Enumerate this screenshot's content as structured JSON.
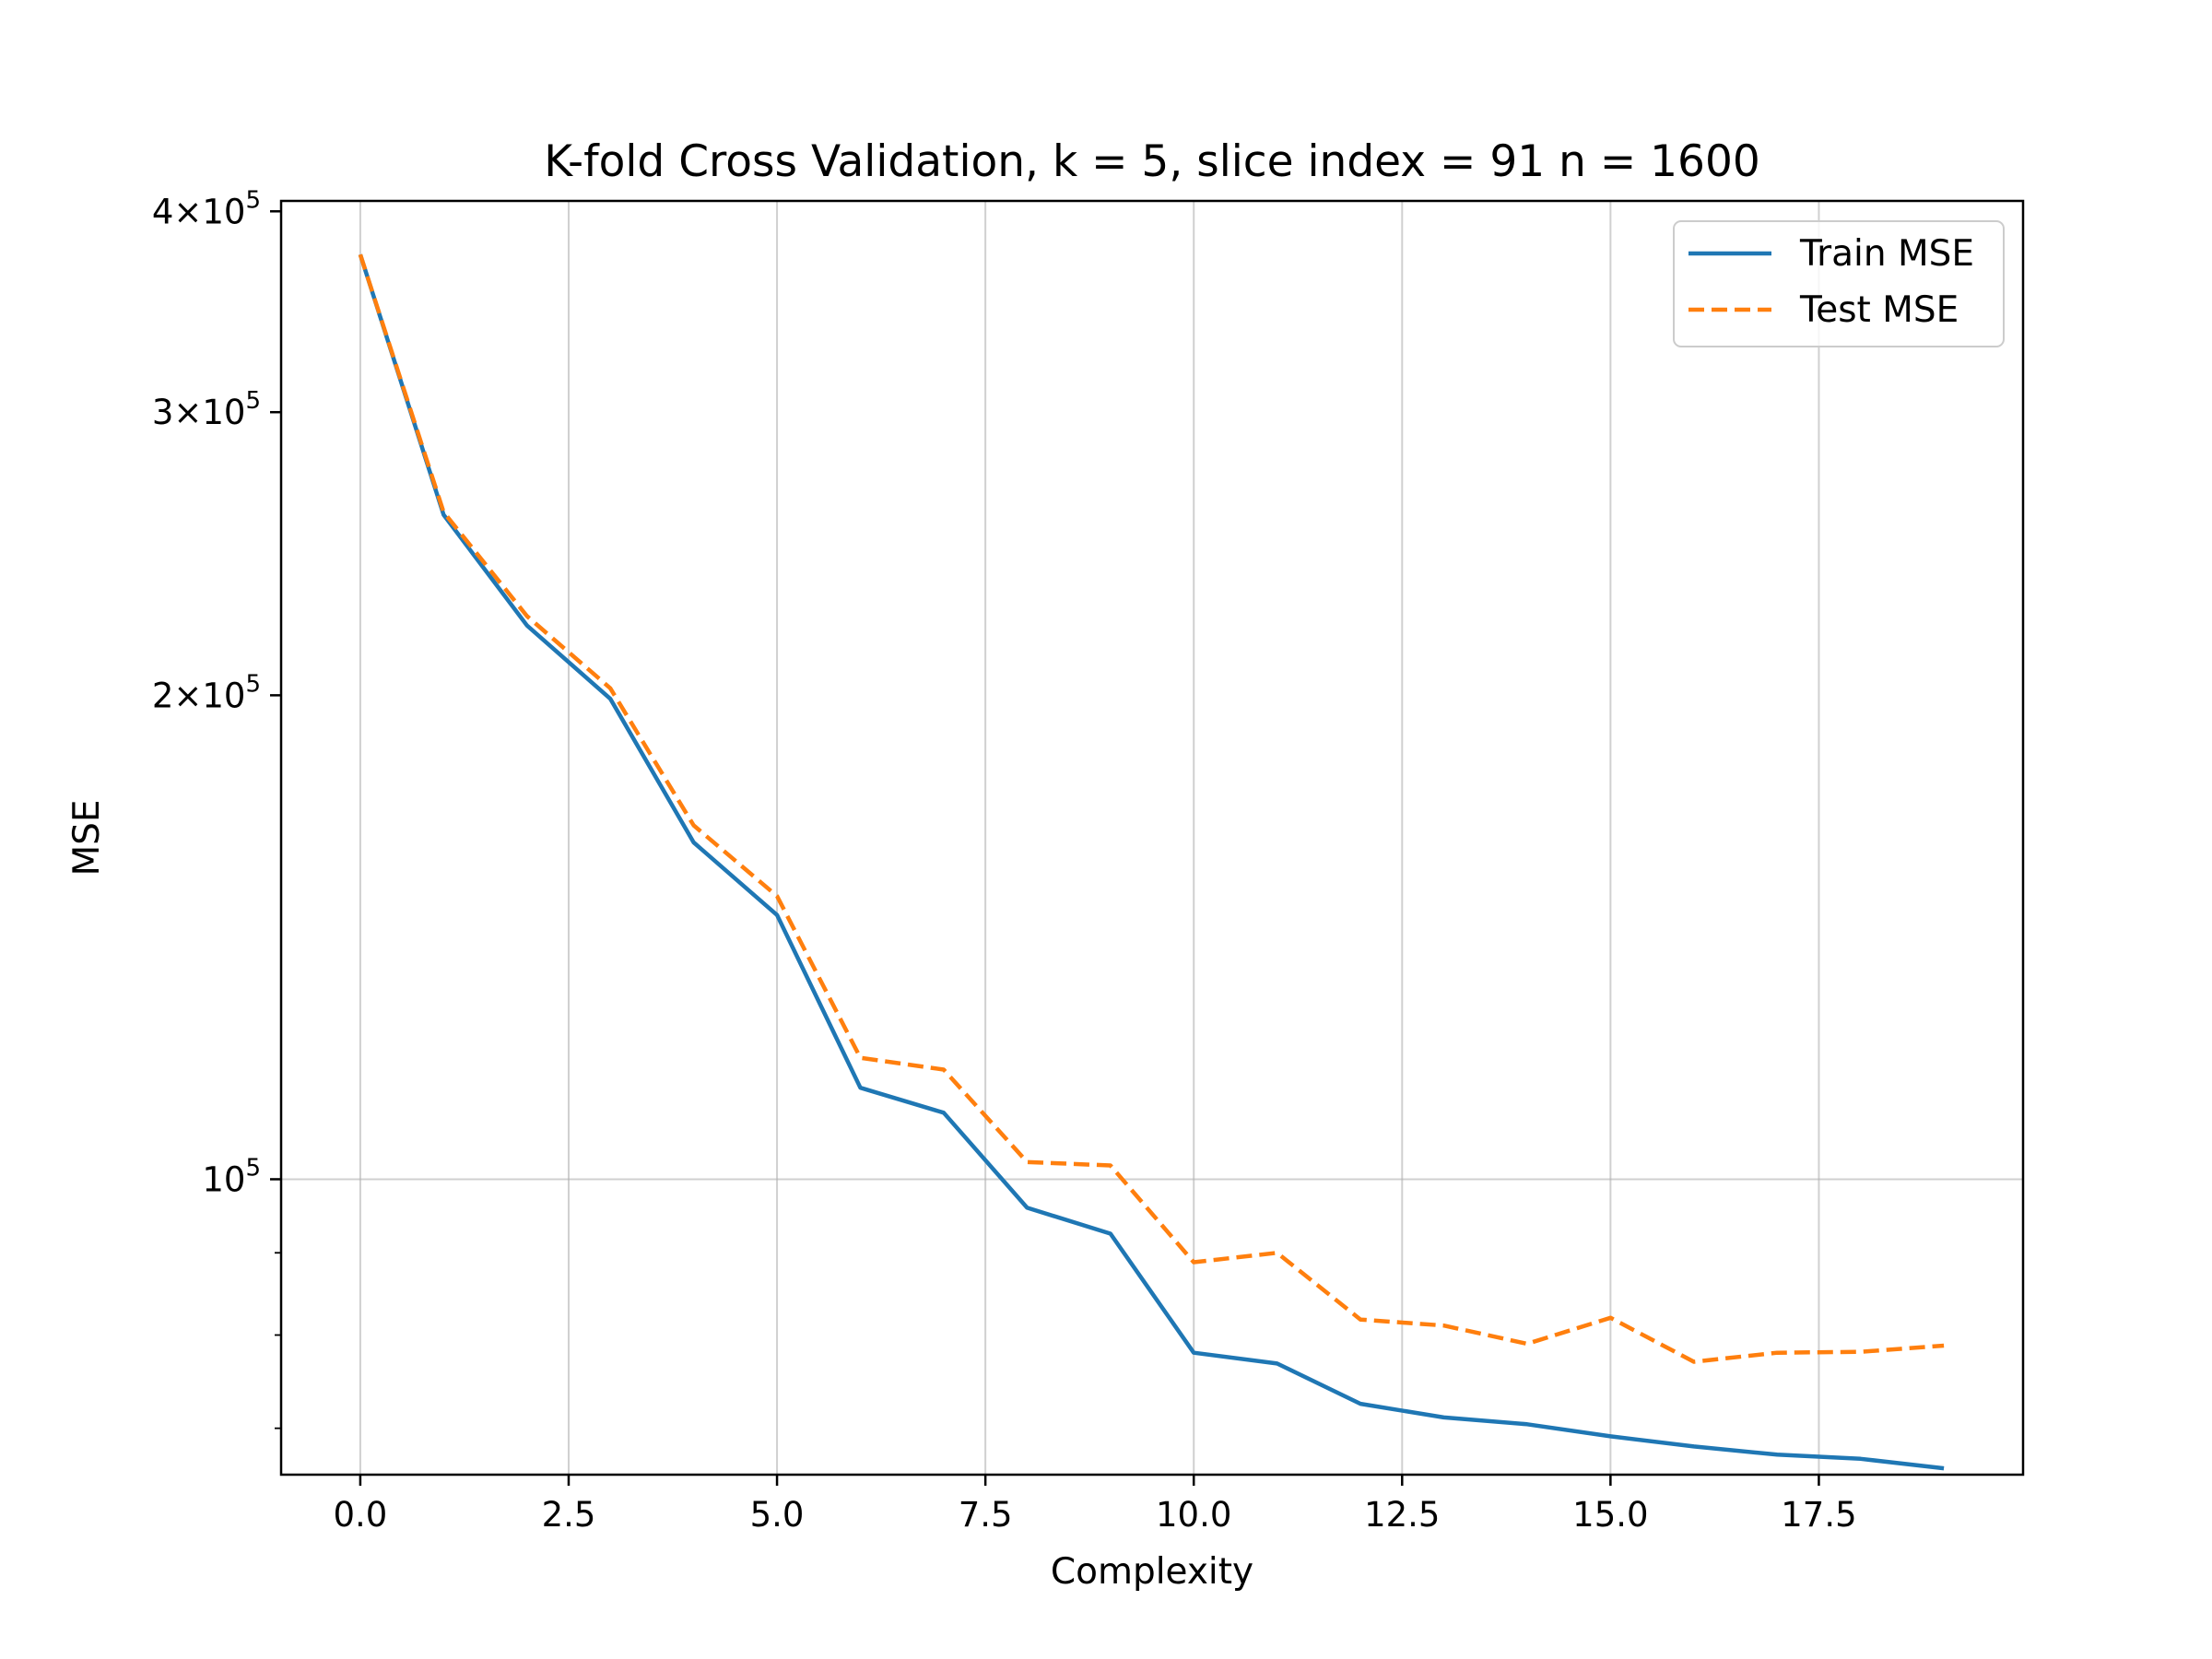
{
  "chart_data": {
    "type": "line",
    "title": "K-fold Cross Validation, k = 5, slice index = 91 n = 1600",
    "xlabel": "Complexity",
    "ylabel": "MSE",
    "y_scale": "log",
    "xlim": [
      -0.95,
      19.95
    ],
    "ylim": [
      65500,
      406000
    ],
    "grid": true,
    "legend_position": "upper right",
    "x_ticks": [
      "0.0",
      "2.5",
      "5.0",
      "7.5",
      "10.0",
      "12.5",
      "15.0",
      "17.5"
    ],
    "y_ticks": [
      {
        "base": "4",
        "exp": "5",
        "value": 400000
      },
      {
        "base": "3",
        "exp": "5",
        "value": 300000
      },
      {
        "base": "2",
        "exp": "5",
        "value": 200000
      },
      {
        "base": "",
        "exp": "5",
        "value": 100000
      }
    ],
    "x": [
      0,
      1,
      2,
      3,
      4,
      5,
      6,
      7,
      8,
      9,
      10,
      11,
      12,
      13,
      14,
      15,
      16,
      17,
      18,
      19
    ],
    "series": [
      {
        "name": "Train MSE",
        "color": "#1f77b4",
        "style": "solid",
        "values": [
          376000,
          259000,
          221000,
          199000,
          162000,
          146000,
          114000,
          110000,
          96000,
          92500,
          78000,
          76800,
          72500,
          71100,
          70400,
          69200,
          68200,
          67400,
          67000,
          66100
        ]
      },
      {
        "name": "Test MSE",
        "color": "#ff7f0e",
        "style": "dashed",
        "values": [
          376000,
          260000,
          224000,
          202000,
          166000,
          150000,
          119000,
          117000,
          102500,
          102000,
          88800,
          90000,
          81800,
          81100,
          79000,
          82000,
          77000,
          78000,
          78100,
          78800
        ]
      }
    ]
  }
}
